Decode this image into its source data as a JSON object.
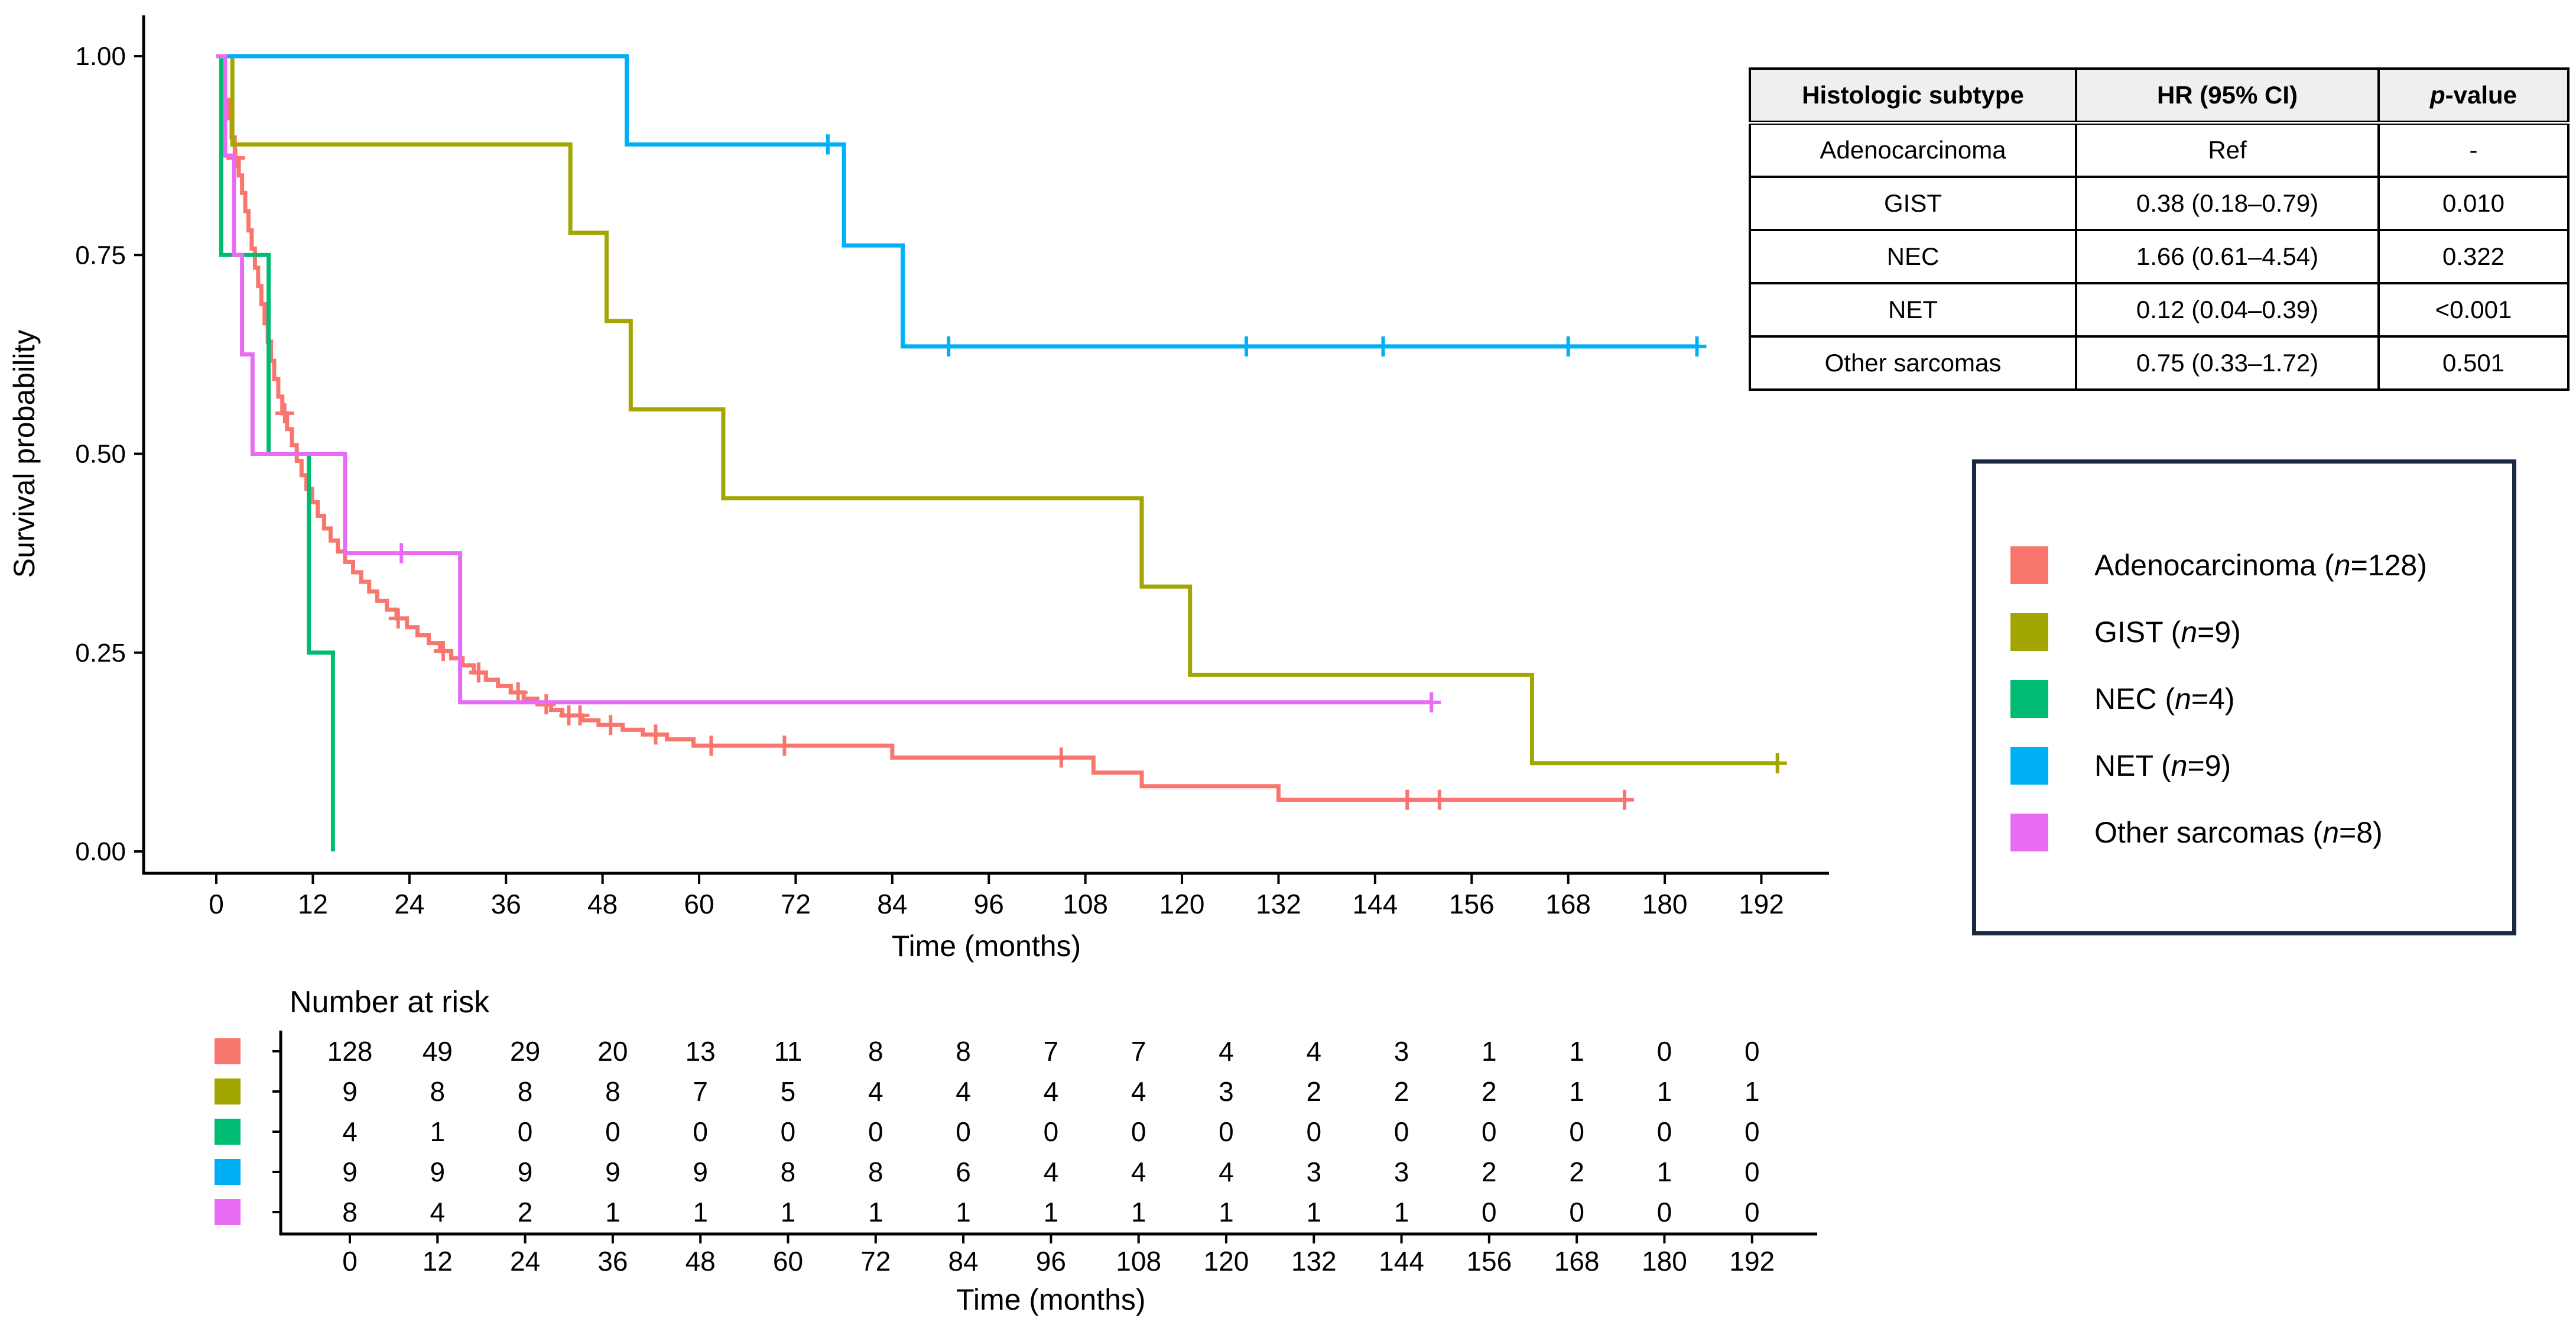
{
  "hr_table": {
    "headers": [
      "Histologic subtype",
      "HR (95% CI)",
      "p-value"
    ],
    "p_header_prefix": "p",
    "p_header_suffix": "-value",
    "rows": [
      {
        "subtype": "Adenocarcinoma",
        "hr": "Ref",
        "p": "-"
      },
      {
        "subtype": "GIST",
        "hr": "0.38 (0.18–0.79)",
        "p": "0.010"
      },
      {
        "subtype": "NEC",
        "hr": "1.66 (0.61–4.54)",
        "p": "0.322"
      },
      {
        "subtype": "NET",
        "hr": "0.12 (0.04–0.39)",
        "p": "<0.001"
      },
      {
        "subtype": "Other sarcomas",
        "hr": "0.75 (0.33–1.72)",
        "p": "0.501"
      }
    ]
  },
  "legend": {
    "border_color": "#1a2940",
    "n_symbol": "n"
  },
  "chart_data": {
    "type": "line",
    "subtype": "kaplan-meier-step-survival",
    "title": "",
    "xlabel": "Time (months)",
    "ylabel": "Survival probability",
    "xlim": [
      0,
      200
    ],
    "ylim": [
      0,
      1
    ],
    "grid": "off",
    "legend_position": "right-outside-box",
    "x_ticks": [
      0,
      12,
      24,
      36,
      48,
      60,
      72,
      84,
      96,
      108,
      120,
      132,
      144,
      156,
      168,
      180,
      192
    ],
    "y_ticks": [
      {
        "v": 1.0,
        "label": "1.00"
      },
      {
        "v": 0.75,
        "label": "0.75"
      },
      {
        "v": 0.5,
        "label": "0.50"
      },
      {
        "v": 0.25,
        "label": "0.25"
      },
      {
        "v": 0.0,
        "label": "0.00"
      }
    ],
    "series": [
      {
        "name": "Adenocarcinoma",
        "n": 128,
        "color": "#F8766D",
        "steps": [
          [
            0,
            1
          ],
          [
            0.7,
            0.969
          ],
          [
            1.1,
            0.945
          ],
          [
            1.5,
            0.922
          ],
          [
            1.9,
            0.898
          ],
          [
            2.3,
            0.872
          ],
          [
            2.8,
            0.85
          ],
          [
            3.2,
            0.828
          ],
          [
            3.6,
            0.805
          ],
          [
            4,
            0.781
          ],
          [
            4.4,
            0.758
          ],
          [
            4.8,
            0.734
          ],
          [
            5.2,
            0.711
          ],
          [
            5.6,
            0.688
          ],
          [
            6,
            0.664
          ],
          [
            6.4,
            0.641
          ],
          [
            6.8,
            0.617
          ],
          [
            7.2,
            0.594
          ],
          [
            7.7,
            0.572
          ],
          [
            8.2,
            0.551
          ],
          [
            8.8,
            0.531
          ],
          [
            9.4,
            0.511
          ],
          [
            10,
            0.491
          ],
          [
            10.6,
            0.473
          ],
          [
            11.2,
            0.456
          ],
          [
            11.9,
            0.439
          ],
          [
            12.6,
            0.422
          ],
          [
            13.4,
            0.406
          ],
          [
            14.2,
            0.391
          ],
          [
            15.1,
            0.377
          ],
          [
            16,
            0.364
          ],
          [
            17,
            0.351
          ],
          [
            18,
            0.339
          ],
          [
            19,
            0.327
          ],
          [
            20,
            0.315
          ],
          [
            21.2,
            0.304
          ],
          [
            22.4,
            0.293
          ],
          [
            23.7,
            0.282
          ],
          [
            25,
            0.272
          ],
          [
            26.4,
            0.262
          ],
          [
            27.8,
            0.252
          ],
          [
            29.2,
            0.243
          ],
          [
            30.6,
            0.234
          ],
          [
            32,
            0.225
          ],
          [
            33.5,
            0.216
          ],
          [
            35,
            0.208
          ],
          [
            36.6,
            0.2
          ],
          [
            38.2,
            0.192
          ],
          [
            39.9,
            0.185
          ],
          [
            41.6,
            0.178
          ],
          [
            43,
            0.171
          ],
          [
            45.5,
            0.165
          ],
          [
            47.5,
            0.159
          ],
          [
            50.5,
            0.153
          ],
          [
            53,
            0.147
          ],
          [
            56,
            0.141
          ],
          [
            59.3,
            0.133
          ],
          [
            84,
            0.118
          ],
          [
            109,
            0.099
          ],
          [
            115,
            0.082
          ],
          [
            132,
            0.065
          ]
        ],
        "end_time": 175,
        "censor_times": [
          2.4,
          8.5,
          22.6,
          28.2,
          32.6,
          37.5,
          41,
          43.8,
          45.2,
          49,
          54.6,
          61.5,
          70.6,
          105,
          148,
          152,
          175
        ]
      },
      {
        "name": "GIST",
        "n": 9,
        "color": "#A3A500",
        "steps": [
          [
            0,
            1
          ],
          [
            2,
            0.889
          ],
          [
            44,
            0.778
          ],
          [
            48.5,
            0.667
          ],
          [
            51.5,
            0.556
          ],
          [
            63,
            0.444
          ],
          [
            115,
            0.333
          ],
          [
            121,
            0.222
          ],
          [
            163.5,
            0.111
          ]
        ],
        "end_time": 194,
        "censor_times": [
          194
        ]
      },
      {
        "name": "NEC",
        "n": 4,
        "color": "#00BC73",
        "steps": [
          [
            0,
            1
          ],
          [
            0.6,
            0.75
          ],
          [
            6.5,
            0.5
          ],
          [
            11.5,
            0.25
          ],
          [
            14.5,
            0
          ]
        ],
        "end_time": 14.5,
        "censor_times": []
      },
      {
        "name": "NET",
        "n": 9,
        "color": "#00B0F6",
        "steps": [
          [
            0,
            1
          ],
          [
            51,
            0.889
          ],
          [
            78,
            0.762
          ],
          [
            85.3,
            0.635
          ]
        ],
        "end_time": 184,
        "censor_times": [
          76,
          91,
          128,
          145,
          168,
          184
        ]
      },
      {
        "name": "Other sarcomas",
        "n": 8,
        "color": "#E76BF3",
        "steps": [
          [
            0,
            1
          ],
          [
            1.1,
            0.875
          ],
          [
            2.2,
            0.75
          ],
          [
            3.2,
            0.625
          ],
          [
            4.5,
            0.5
          ],
          [
            16,
            0.375
          ],
          [
            30.3,
            0.1875
          ]
        ],
        "end_time": 151,
        "censor_times": [
          23,
          151
        ]
      }
    ],
    "risk_table": {
      "title": "Number at risk",
      "xlabel": "Time (months)",
      "times": [
        0,
        12,
        24,
        36,
        48,
        60,
        72,
        84,
        96,
        108,
        120,
        132,
        144,
        156,
        168,
        180,
        192
      ],
      "rows": [
        {
          "name": "Adenocarcinoma",
          "color": "#F8766D",
          "counts": [
            128,
            49,
            29,
            20,
            13,
            11,
            8,
            8,
            7,
            7,
            4,
            4,
            3,
            1,
            1,
            0,
            0
          ]
        },
        {
          "name": "GIST",
          "color": "#A3A500",
          "counts": [
            9,
            8,
            8,
            8,
            7,
            5,
            4,
            4,
            4,
            4,
            3,
            2,
            2,
            2,
            1,
            1,
            1
          ]
        },
        {
          "name": "NEC",
          "color": "#00BC73",
          "counts": [
            4,
            1,
            0,
            0,
            0,
            0,
            0,
            0,
            0,
            0,
            0,
            0,
            0,
            0,
            0,
            0,
            0
          ]
        },
        {
          "name": "NET",
          "color": "#00B0F6",
          "counts": [
            9,
            9,
            9,
            9,
            9,
            8,
            8,
            6,
            4,
            4,
            4,
            3,
            3,
            2,
            2,
            1,
            0
          ]
        },
        {
          "name": "Other sarcomas",
          "color": "#E76BF3",
          "counts": [
            8,
            4,
            2,
            1,
            1,
            1,
            1,
            1,
            1,
            1,
            1,
            1,
            1,
            0,
            0,
            0,
            0
          ]
        }
      ]
    }
  }
}
